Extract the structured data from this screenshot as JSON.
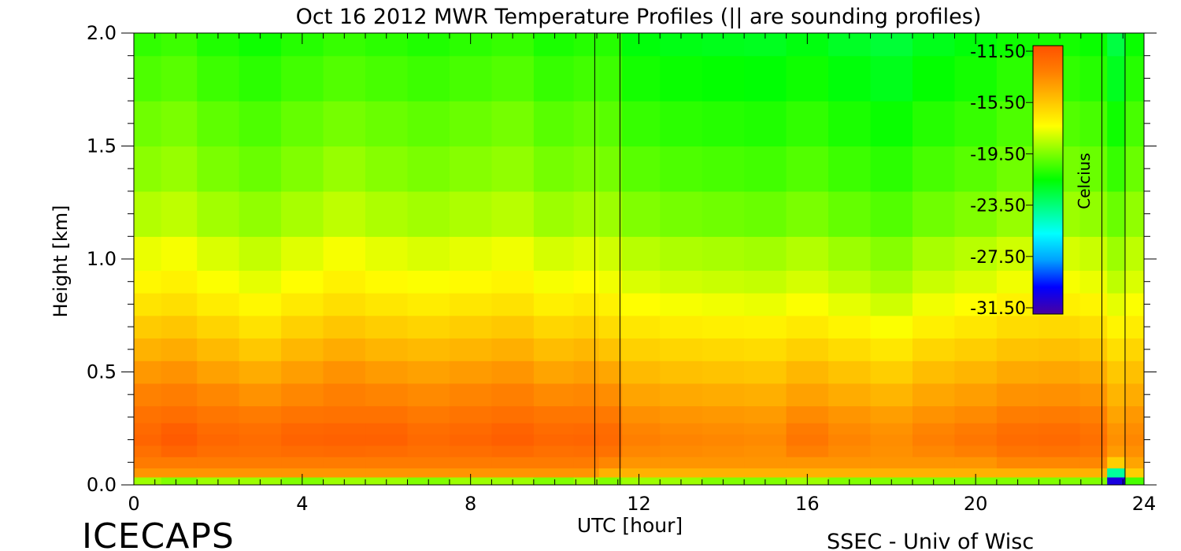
{
  "chart_data": {
    "type": "heatmap",
    "title": "Oct 16 2012 MWR Temperature Profiles (|| are sounding profiles)",
    "xlabel": "UTC [hour]",
    "ylabel": "Height [km]",
    "xlim": [
      0,
      24
    ],
    "ylim": [
      0,
      2.0
    ],
    "x_ticks": [
      0,
      4,
      8,
      12,
      16,
      20,
      24
    ],
    "x_tick_labels": [
      "0",
      "4",
      "8",
      "12",
      "16",
      "20",
      "24"
    ],
    "y_ticks": [
      0,
      0.5,
      1.0,
      1.5,
      2.0
    ],
    "y_tick_labels": [
      "0.0",
      "0.5",
      "1.0",
      "1.5",
      "2.0"
    ],
    "colorbar": {
      "label": "Celcius",
      "ticks": [
        -11.5,
        -15.5,
        -19.5,
        -23.5,
        -27.5,
        -31.5
      ],
      "tick_labels": [
        "-11.50",
        "-15.50",
        "-19.50",
        "-23.50",
        "-27.50",
        "-31.50"
      ],
      "range": [
        -33.5,
        -11.0
      ],
      "colors": [
        "#4a00a0",
        "#0000ff",
        "#00a0ff",
        "#00ffff",
        "#00ff80",
        "#00ff00",
        "#80ff00",
        "#ffff00",
        "#ffc000",
        "#ff8000",
        "#ff5000"
      ]
    },
    "sounding_times_hours": [
      10.95,
      11.55,
      23.0,
      23.55
    ],
    "heights_km": [
      0.02,
      0.05,
      0.1,
      0.15,
      0.2,
      0.25,
      0.3,
      0.4,
      0.5,
      0.6,
      0.7,
      0.8,
      0.9,
      1.0,
      1.2,
      1.4,
      1.6,
      1.8,
      2.0
    ],
    "profile_times_hours": [
      0.3,
      1,
      2,
      3,
      4,
      5,
      6,
      7,
      8,
      9,
      10,
      10.9,
      11.2,
      12,
      13,
      14,
      15,
      16,
      17,
      18,
      19,
      20,
      21,
      22,
      22.95,
      23.3,
      23.8
    ],
    "temperature_celsius": [
      [
        -19.5,
        -14,
        -13,
        -12.5,
        -12,
        -12.2,
        -12.6,
        -13.3,
        -14.1,
        -15,
        -15.9,
        -16.8,
        -17.5,
        -18.1,
        -19.1,
        -19.8,
        -20.3,
        -20.9,
        -21.4
      ],
      [
        -20,
        -14,
        -13,
        -12,
        -11.5,
        -11.7,
        -12.4,
        -13.1,
        -13.9,
        -14.8,
        -15.7,
        -16.6,
        -17.3,
        -17.9,
        -18.9,
        -19.6,
        -20.1,
        -20.7,
        -21.2
      ],
      [
        -19.5,
        -14,
        -13,
        -12.4,
        -12.1,
        -12.3,
        -12.8,
        -13.5,
        -14.4,
        -15.3,
        -16.2,
        -17.1,
        -17.8,
        -18.4,
        -19.4,
        -20.1,
        -20.6,
        -21.2,
        -21.7
      ],
      [
        -19.5,
        -14,
        -13,
        -12.5,
        -12.3,
        -12.5,
        -13,
        -13.9,
        -14.8,
        -15.8,
        -16.7,
        -17.5,
        -18.2,
        -18.8,
        -19.7,
        -20.4,
        -20.9,
        -21.5,
        -22
      ],
      [
        -20,
        -14,
        -13,
        -12.3,
        -11.9,
        -12.1,
        -12.7,
        -13.5,
        -14.3,
        -15.2,
        -16.1,
        -17,
        -17.7,
        -18.3,
        -19.3,
        -20,
        -20.5,
        -21.1,
        -21.6
      ],
      [
        -19.5,
        -14,
        -13,
        -12.2,
        -11.8,
        -12,
        -12.6,
        -13.2,
        -13.9,
        -14.8,
        -15.7,
        -16.6,
        -17.3,
        -17.9,
        -18.9,
        -19.6,
        -20.2,
        -20.8,
        -21.3
      ],
      [
        -19.5,
        -14,
        -13,
        -12.3,
        -11.8,
        -12,
        -12.6,
        -13.4,
        -14.2,
        -15.1,
        -16,
        -16.9,
        -17.6,
        -18.2,
        -19.2,
        -19.9,
        -20.4,
        -21,
        -21.5
      ],
      [
        -20,
        -14,
        -13,
        -12.5,
        -12.2,
        -12.4,
        -12.9,
        -13.6,
        -14.4,
        -15.3,
        -16.2,
        -17.1,
        -17.8,
        -18.4,
        -19.4,
        -20.1,
        -20.6,
        -21.2,
        -21.7
      ],
      [
        -19.5,
        -14,
        -13,
        -12.4,
        -12,
        -12.2,
        -12.7,
        -13.4,
        -14.2,
        -15.1,
        -16,
        -16.9,
        -17.6,
        -18.2,
        -19.2,
        -19.9,
        -20.4,
        -21,
        -21.5
      ],
      [
        -19.5,
        -14,
        -13,
        -12.2,
        -11.7,
        -11.9,
        -12.5,
        -13.2,
        -14,
        -14.9,
        -15.8,
        -16.7,
        -17.4,
        -18,
        -19,
        -19.7,
        -20.2,
        -20.8,
        -21.3
      ],
      [
        -20,
        -14,
        -13,
        -12.5,
        -12.1,
        -12.3,
        -12.8,
        -13.6,
        -14.5,
        -15.4,
        -16.3,
        -17.2,
        -17.9,
        -18.5,
        -19.5,
        -20.2,
        -20.7,
        -21.3,
        -21.8
      ],
      [
        -19.5,
        -14,
        -13,
        -12.4,
        -12,
        -12.2,
        -12.8,
        -13.5,
        -14.3,
        -15.2,
        -16.1,
        -17,
        -17.7,
        -18.3,
        -19.3,
        -20,
        -20.5,
        -21.1,
        -21.6
      ],
      [
        -20,
        -15,
        -13.5,
        -12.6,
        -12.2,
        -12.3,
        -12.9,
        -13.7,
        -14.6,
        -15.6,
        -16.5,
        -17.3,
        -18,
        -18.6,
        -19.5,
        -20.2,
        -20.7,
        -21.2,
        -21.6
      ],
      [
        -19.5,
        -15,
        -14,
        -13.5,
        -13.2,
        -13.4,
        -13.8,
        -14.5,
        -15.3,
        -16.1,
        -16.9,
        -17.7,
        -18.4,
        -19,
        -20,
        -20.7,
        -21.3,
        -21.9,
        -22.4
      ],
      [
        -19.5,
        -15,
        -14,
        -13.6,
        -13.4,
        -13.6,
        -14,
        -14.7,
        -15.5,
        -16.3,
        -17.1,
        -17.9,
        -18.6,
        -19.2,
        -20.2,
        -20.9,
        -21.5,
        -22.1,
        -22.6
      ],
      [
        -20,
        -15,
        -14,
        -13.7,
        -13.5,
        -13.7,
        -14.1,
        -14.8,
        -15.6,
        -16.4,
        -17.2,
        -18,
        -18.7,
        -19.3,
        -20.3,
        -21,
        -21.6,
        -22.2,
        -22.7
      ],
      [
        -20,
        -15,
        -14,
        -13.8,
        -13.6,
        -13.8,
        -14.2,
        -14.9,
        -15.7,
        -16.5,
        -17.3,
        -18.1,
        -18.8,
        -19.4,
        -20.4,
        -21.1,
        -21.7,
        -22.3,
        -22.8
      ],
      [
        -19.5,
        -15,
        -14,
        -13.2,
        -12.8,
        -13,
        -13.6,
        -14.4,
        -15.2,
        -16.1,
        -17,
        -17.8,
        -18.5,
        -19.1,
        -20.1,
        -20.8,
        -21.4,
        -22,
        -22.5
      ],
      [
        -20,
        -15,
        -14,
        -13.6,
        -13.4,
        -13.6,
        -14,
        -14.8,
        -15.6,
        -16.5,
        -17.4,
        -18.2,
        -18.9,
        -19.5,
        -20.5,
        -21.2,
        -21.8,
        -22.4,
        -22.9
      ],
      [
        -20,
        -15,
        -14,
        -13.8,
        -13.7,
        -13.9,
        -14.3,
        -15.1,
        -16,
        -16.9,
        -17.8,
        -18.6,
        -19.3,
        -19.9,
        -20.8,
        -21.5,
        -22.1,
        -22.7,
        -23.2
      ],
      [
        -20,
        -15,
        -14,
        -13.5,
        -13.2,
        -13.4,
        -13.9,
        -14.6,
        -15.4,
        -16.3,
        -17.2,
        -18,
        -18.7,
        -19.3,
        -20.3,
        -21,
        -21.6,
        -22.2,
        -22.7
      ],
      [
        -20,
        -15,
        -14,
        -13.2,
        -12.8,
        -13,
        -13.6,
        -14.3,
        -15.1,
        -16,
        -16.9,
        -17.7,
        -18.4,
        -19,
        -20,
        -20.7,
        -21.3,
        -21.9,
        -22.4
      ],
      [
        -20,
        -15,
        -13.5,
        -12.7,
        -12.3,
        -12.5,
        -13.1,
        -13.9,
        -14.7,
        -15.6,
        -16.5,
        -17.3,
        -18,
        -18.6,
        -19.6,
        -20.3,
        -20.9,
        -21.5,
        -22
      ],
      [
        -20,
        -15,
        -13.5,
        -12.6,
        -12.2,
        -12.4,
        -13,
        -13.8,
        -14.6,
        -15.5,
        -16.4,
        -17.2,
        -17.9,
        -18.5,
        -19.5,
        -20.2,
        -20.8,
        -21.4,
        -21.9
      ],
      [
        -20,
        -15,
        -13.5,
        -12.8,
        -12.5,
        -12.7,
        -13.2,
        -14,
        -14.8,
        -15.7,
        -16.6,
        -17.4,
        -18.1,
        -18.7,
        -19.7,
        -20.4,
        -21,
        -21.6,
        -22.1
      ],
      [
        -32,
        -25,
        -16,
        -14.2,
        -13.8,
        -14,
        -14.5,
        -15.1,
        -15.8,
        -16.6,
        -17.4,
        -18.2,
        -18.9,
        -19.5,
        -20.4,
        -21.3,
        -22,
        -22.8,
        -23.4
      ],
      [
        -21,
        -16,
        -14.5,
        -13.8,
        -13.5,
        -13.7,
        -14.1,
        -14.8,
        -15.5,
        -16.3,
        -17.1,
        -17.8,
        -18.4,
        -18.9,
        -19.7,
        -20.4,
        -21,
        -21.6,
        -22.1
      ]
    ]
  },
  "footer": {
    "left_text": "ICECAPS",
    "right_text": "SSEC - Univ of Wisc"
  }
}
